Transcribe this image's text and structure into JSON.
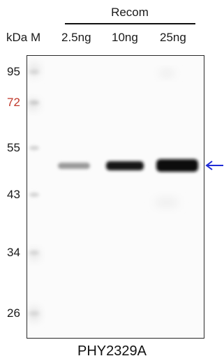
{
  "header": {
    "group_label": "Recom",
    "unit_label": "kDa M",
    "lanes": [
      "2.5ng",
      "10ng",
      "25ng"
    ]
  },
  "markers": [
    {
      "label": "95",
      "color": "#1a1a1a"
    },
    {
      "label": "72",
      "color": "#c0392b"
    },
    {
      "label": "55",
      "color": "#1a1a1a"
    },
    {
      "label": "43",
      "color": "#1a1a1a"
    },
    {
      "label": "34",
      "color": "#1a1a1a"
    },
    {
      "label": "26",
      "color": "#1a1a1a"
    }
  ],
  "arrow": {
    "color": "#1f2bd6"
  },
  "caption": "PHY2329A"
}
